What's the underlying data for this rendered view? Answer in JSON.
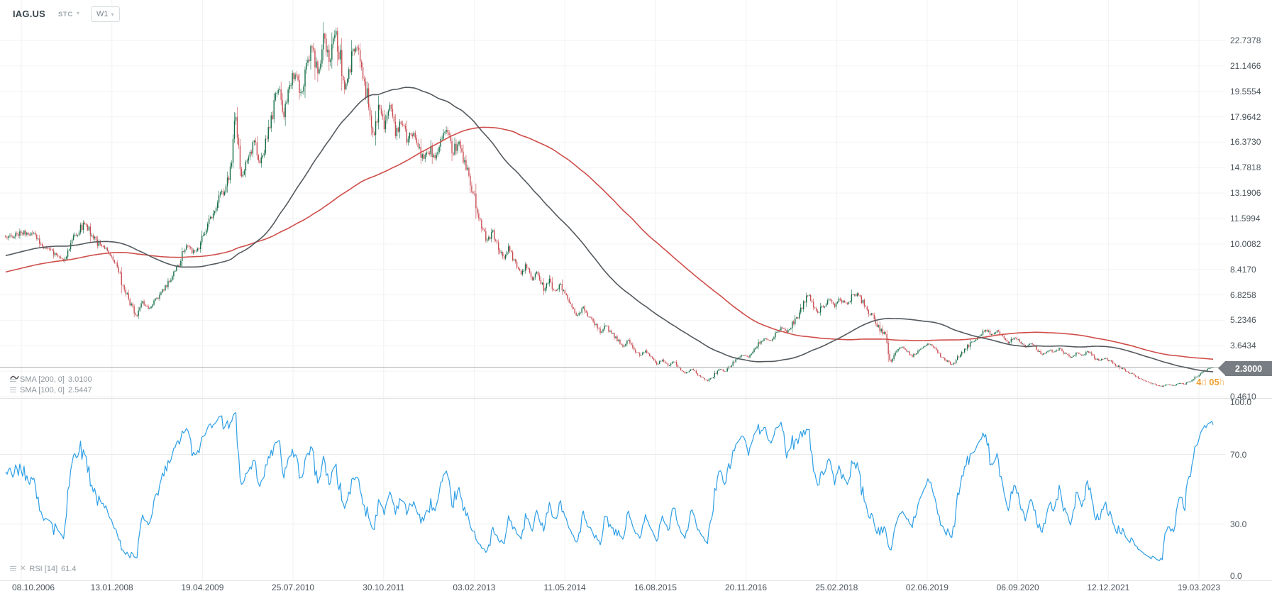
{
  "header": {
    "symbol": "IAG.US",
    "instrument_type": "STC",
    "timeframe": "W1"
  },
  "price_panel": {
    "sma_legend": [
      {
        "label": "SMA [200, 0]",
        "value": "3.0100",
        "color": "#c0504d"
      },
      {
        "label": "SMA [100, 0]",
        "value": "2.5447",
        "color": "#565c61"
      }
    ],
    "current_price": "2.3000",
    "covered_tick": "2.0522",
    "countdown": {
      "days": "4",
      "days_unit": "d",
      "hours": "05",
      "hours_unit": "h"
    }
  },
  "rsi_panel": {
    "legend": {
      "name_period": "RSI [14]",
      "value": "61.4"
    }
  },
  "chart_data": {
    "type": "candlestick",
    "title": "IAG.US weekly chart with SMA(200), SMA(100) overlays and RSI(14) oscillator",
    "timeframe": "W1",
    "current_price": 2.3,
    "countdown_text": "4d 05h",
    "price_axis": {
      "min": 0.461,
      "max": 24.5,
      "step": 1.5912,
      "tick_values": [
        22.7378,
        21.1466,
        19.5554,
        17.9642,
        16.373,
        14.7818,
        13.1906,
        11.5994,
        10.0082,
        8.417,
        6.8258,
        5.2346,
        3.6434,
        2.0522,
        0.461
      ],
      "tick_labels": [
        "22.7378",
        "21.1466",
        "19.5554",
        "17.9642",
        "16.3730",
        "14.7818",
        "13.1906",
        "11.5994",
        "10.0082",
        "8.4170",
        "6.8258",
        "5.2346",
        "3.6434",
        "2.0522",
        "0.4610"
      ]
    },
    "time_axis": {
      "tick_labels": [
        "08.10.2006",
        "13.01.2008",
        "19.04.2009",
        "25.07.2010",
        "30.10.2011",
        "03.02.2013",
        "11.05.2014",
        "16.08.2015",
        "20.11.2016",
        "25.02.2018",
        "02.06.2019",
        "06.09.2020",
        "12.12.2021",
        "19.03.2023"
      ]
    },
    "series": {
      "prehistory": {
        "weeks": 200,
        "start_price": 6.2,
        "end_price": 10.3
      },
      "close_keypoints": [
        [
          8,
          10.3
        ],
        [
          40,
          10.8
        ],
        [
          70,
          9.6
        ],
        [
          90,
          9.0
        ],
        [
          105,
          10.6
        ],
        [
          120,
          11.3
        ],
        [
          140,
          9.9
        ],
        [
          158,
          9.4
        ],
        [
          172,
          7.6
        ],
        [
          185,
          6.1
        ],
        [
          193,
          5.4
        ],
        [
          200,
          6.4
        ],
        [
          210,
          5.9
        ],
        [
          222,
          6.6
        ],
        [
          235,
          7.4
        ],
        [
          250,
          8.5
        ],
        [
          262,
          9.9
        ],
        [
          275,
          9.4
        ],
        [
          288,
          10.6
        ],
        [
          300,
          12.1
        ],
        [
          315,
          13.4
        ],
        [
          326,
          14.6
        ],
        [
          332,
          18.3
        ],
        [
          340,
          14.2
        ],
        [
          350,
          15.4
        ],
        [
          358,
          16.4
        ],
        [
          366,
          15.3
        ],
        [
          375,
          16.2
        ],
        [
          384,
          18.3
        ],
        [
          392,
          19.9
        ],
        [
          400,
          18.2
        ],
        [
          408,
          19.6
        ],
        [
          416,
          20.9
        ],
        [
          424,
          19.3
        ],
        [
          432,
          21.2
        ],
        [
          440,
          22.3
        ],
        [
          448,
          20.6
        ],
        [
          456,
          23.0
        ],
        [
          464,
          21.4
        ],
        [
          472,
          23.4
        ],
        [
          478,
          22.0
        ],
        [
          486,
          19.6
        ],
        [
          494,
          21.2
        ],
        [
          502,
          22.6
        ],
        [
          510,
          21.0
        ],
        [
          518,
          19.2
        ],
        [
          526,
          16.8
        ],
        [
          534,
          18.5
        ],
        [
          542,
          17.4
        ],
        [
          550,
          18.8
        ],
        [
          558,
          17.0
        ],
        [
          566,
          17.8
        ],
        [
          574,
          16.4
        ],
        [
          582,
          17.1
        ],
        [
          590,
          16.0
        ],
        [
          598,
          15.2
        ],
        [
          606,
          16.0
        ],
        [
          614,
          15.3
        ],
        [
          622,
          16.4
        ],
        [
          630,
          16.9
        ],
        [
          638,
          15.8
        ],
        [
          646,
          16.3
        ],
        [
          654,
          15.1
        ],
        [
          662,
          14.0
        ],
        [
          670,
          12.8
        ],
        [
          678,
          11.2
        ],
        [
          686,
          10.1
        ],
        [
          694,
          10.8
        ],
        [
          702,
          9.7
        ],
        [
          710,
          9.1
        ],
        [
          718,
          9.8
        ],
        [
          726,
          8.8
        ],
        [
          734,
          8.1
        ],
        [
          742,
          8.7
        ],
        [
          750,
          7.7
        ],
        [
          758,
          8.3
        ],
        [
          766,
          7.2
        ],
        [
          774,
          7.8
        ],
        [
          782,
          7.0
        ],
        [
          790,
          7.5
        ],
        [
          798,
          6.7
        ],
        [
          806,
          6.1
        ],
        [
          814,
          5.5
        ],
        [
          822,
          6.0
        ],
        [
          830,
          5.4
        ],
        [
          838,
          5.0
        ],
        [
          846,
          4.5
        ],
        [
          854,
          4.9
        ],
        [
          862,
          4.4
        ],
        [
          870,
          4.0
        ],
        [
          878,
          3.6
        ],
        [
          886,
          4.0
        ],
        [
          894,
          3.4
        ],
        [
          902,
          3.0
        ],
        [
          910,
          3.3
        ],
        [
          918,
          2.9
        ],
        [
          926,
          2.5
        ],
        [
          934,
          2.8
        ],
        [
          942,
          2.4
        ],
        [
          950,
          2.7
        ],
        [
          958,
          2.2
        ],
        [
          966,
          1.9
        ],
        [
          974,
          2.2
        ],
        [
          982,
          1.9
        ],
        [
          990,
          1.6
        ],
        [
          998,
          1.45
        ],
        [
          1006,
          1.8
        ],
        [
          1014,
          2.2
        ],
        [
          1022,
          2.0
        ],
        [
          1030,
          2.4
        ],
        [
          1038,
          2.8
        ],
        [
          1046,
          3.1
        ],
        [
          1054,
          2.9
        ],
        [
          1062,
          3.3
        ],
        [
          1070,
          3.8
        ],
        [
          1078,
          4.2
        ],
        [
          1086,
          3.9
        ],
        [
          1094,
          4.4
        ],
        [
          1102,
          4.8
        ],
        [
          1110,
          4.5
        ],
        [
          1118,
          5.1
        ],
        [
          1126,
          5.6
        ],
        [
          1134,
          6.4
        ],
        [
          1140,
          6.9
        ],
        [
          1146,
          6.3
        ],
        [
          1152,
          5.7
        ],
        [
          1160,
          6.1
        ],
        [
          1168,
          6.5
        ],
        [
          1176,
          6.1
        ],
        [
          1184,
          6.6
        ],
        [
          1192,
          6.2
        ],
        [
          1200,
          6.7
        ],
        [
          1208,
          6.9
        ],
        [
          1216,
          6.4
        ],
        [
          1224,
          5.8
        ],
        [
          1232,
          5.3
        ],
        [
          1240,
          4.7
        ],
        [
          1248,
          4.2
        ],
        [
          1255,
          2.6
        ],
        [
          1262,
          3.2
        ],
        [
          1270,
          3.6
        ],
        [
          1278,
          3.3
        ],
        [
          1286,
          3.0
        ],
        [
          1294,
          3.3
        ],
        [
          1302,
          3.6
        ],
        [
          1310,
          3.8
        ],
        [
          1318,
          3.4
        ],
        [
          1326,
          3.0
        ],
        [
          1334,
          2.7
        ],
        [
          1342,
          2.4
        ],
        [
          1350,
          2.9
        ],
        [
          1358,
          3.3
        ],
        [
          1366,
          3.7
        ],
        [
          1374,
          4.0
        ],
        [
          1382,
          4.4
        ],
        [
          1390,
          4.7
        ],
        [
          1398,
          4.3
        ],
        [
          1406,
          4.6
        ],
        [
          1414,
          4.1
        ],
        [
          1422,
          3.8
        ],
        [
          1430,
          4.2
        ],
        [
          1438,
          3.9
        ],
        [
          1446,
          3.5
        ],
        [
          1454,
          3.8
        ],
        [
          1462,
          3.4
        ],
        [
          1470,
          3.1
        ],
        [
          1478,
          3.4
        ],
        [
          1486,
          3.2
        ],
        [
          1494,
          3.5
        ],
        [
          1502,
          3.1
        ],
        [
          1510,
          2.9
        ],
        [
          1518,
          3.2
        ],
        [
          1526,
          3.0
        ],
        [
          1534,
          3.3
        ],
        [
          1542,
          2.9
        ],
        [
          1550,
          2.7
        ],
        [
          1558,
          2.9
        ],
        [
          1566,
          2.6
        ],
        [
          1574,
          2.4
        ],
        [
          1582,
          2.2
        ],
        [
          1590,
          2.0
        ],
        [
          1598,
          1.8
        ],
        [
          1606,
          1.6
        ],
        [
          1614,
          1.45
        ],
        [
          1622,
          1.3
        ],
        [
          1630,
          1.2
        ],
        [
          1638,
          1.1
        ],
        [
          1646,
          1.25
        ],
        [
          1654,
          1.15
        ],
        [
          1662,
          1.3
        ],
        [
          1670,
          1.25
        ],
        [
          1678,
          1.45
        ],
        [
          1686,
          1.7
        ],
        [
          1694,
          1.95
        ],
        [
          1702,
          2.15
        ],
        [
          1710,
          2.3
        ]
      ]
    },
    "overlays": [
      {
        "type": "SMA",
        "period": 200,
        "shift": 0,
        "color": "#cf4e4a",
        "value": 3.01
      },
      {
        "type": "SMA",
        "period": 100,
        "shift": 0,
        "color": "#53595e",
        "value": 2.5447
      }
    ],
    "oscillator": {
      "type": "RSI",
      "period": 14,
      "range": [
        0,
        100
      ],
      "value": 61.4,
      "color": "#2e9fe6",
      "tick_values": [
        100,
        70,
        30,
        0
      ],
      "tick_labels": [
        "100.0",
        "70.0",
        "30.0",
        "0.0"
      ],
      "level_lines": [
        70,
        30
      ]
    },
    "colors": {
      "up": "#156d47",
      "down": "#c94d53",
      "price_line": "#aeb3b7",
      "grid": "#f3f3f3",
      "grid_v": "#f1f1f1"
    }
  }
}
